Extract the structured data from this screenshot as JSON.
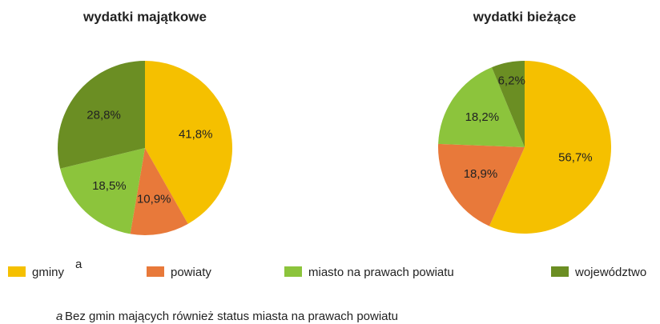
{
  "chart_data": [
    {
      "type": "pie",
      "title": "wydatki majątkowe",
      "categories": [
        "gminy",
        "powiaty",
        "miasto na prawach powiatu",
        "województwo"
      ],
      "values": [
        41.8,
        10.9,
        18.5,
        28.8
      ],
      "value_labels": [
        "41,8%",
        "10,9%",
        "18,5%",
        "28,8%"
      ],
      "colors": [
        "#f5c000",
        "#e8793a",
        "#8cc43c",
        "#6b8e23"
      ]
    },
    {
      "type": "pie",
      "title": "wydatki bieżące",
      "categories": [
        "gminy",
        "powiaty",
        "miasto na prawach powiatu",
        "województwo"
      ],
      "values": [
        56.7,
        18.9,
        18.2,
        6.2
      ],
      "value_labels": [
        "56,7%",
        "18,9%",
        "18,2%",
        "6,2%"
      ],
      "colors": [
        "#f5c000",
        "#e8793a",
        "#8cc43c",
        "#6b8e23"
      ]
    }
  ],
  "footnote": {
    "marker": "a",
    "text": "Bez gmin mających również status miasta na prawach powiatu"
  }
}
